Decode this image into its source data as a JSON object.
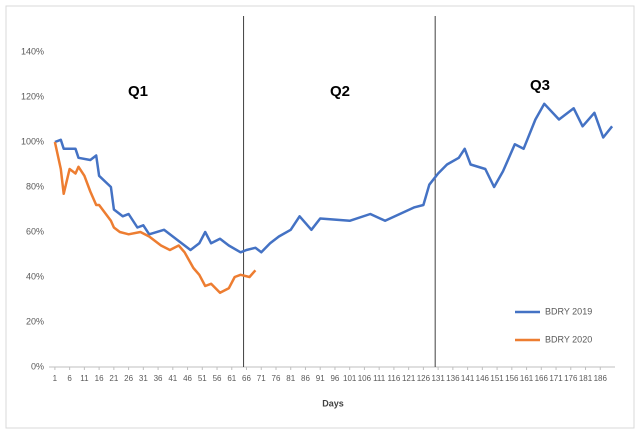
{
  "chart_data": {
    "type": "line",
    "x_label": "Days",
    "annotations": [
      "Q1",
      "Q2",
      "Q3"
    ],
    "dividers": [
      65,
      130
    ],
    "legend": "lower right",
    "xlim": [
      -1,
      191
    ],
    "xticks": [
      1,
      6,
      11,
      16,
      21,
      26,
      31,
      36,
      41,
      46,
      51,
      56,
      61,
      66,
      71,
      76,
      81,
      86,
      91,
      96,
      101,
      106,
      111,
      116,
      121,
      126,
      131,
      136,
      141,
      146,
      151,
      156,
      161,
      166,
      171,
      176,
      181,
      186
    ],
    "ylim": [
      0,
      140
    ],
    "yticks": [
      {
        "value": 0,
        "label": "0%"
      },
      {
        "value": 20,
        "label": "20%"
      },
      {
        "value": 40,
        "label": "40%"
      },
      {
        "value": 60,
        "label": "60%"
      },
      {
        "value": 80,
        "label": "80%"
      },
      {
        "value": 100,
        "label": "100%"
      },
      {
        "value": 120,
        "label": "120%"
      },
      {
        "value": 140,
        "label": "140%"
      }
    ],
    "series": [
      {
        "name": "BDRY 2019",
        "color": "#4472c4",
        "x": [
          1,
          3,
          4,
          8,
          9,
          13,
          15,
          16,
          20,
          21,
          24,
          26,
          29,
          31,
          33,
          38,
          43,
          47,
          50,
          52,
          54,
          57,
          60,
          64,
          66,
          69,
          71,
          74,
          77,
          81,
          84,
          88,
          91,
          101,
          108,
          113,
          118,
          123,
          126,
          128,
          131,
          134,
          138,
          140,
          142,
          147,
          150,
          153,
          157,
          160,
          164,
          167,
          172,
          177,
          180,
          184,
          187,
          190
        ],
        "values": [
          100,
          101,
          97,
          97,
          93,
          92,
          94,
          85,
          80,
          70,
          67,
          68,
          62,
          63,
          59,
          61,
          56,
          52,
          55,
          60,
          55,
          57,
          54,
          51,
          52,
          53,
          51,
          55,
          58,
          61,
          67,
          61,
          66,
          65,
          68,
          65,
          68,
          71,
          72,
          81,
          86,
          90,
          93,
          97,
          90,
          88,
          80,
          87,
          99,
          97,
          110,
          117,
          110,
          115,
          107,
          113,
          102,
          107
        ]
      },
      {
        "name": "BDRY 2020",
        "color": "#ed7d31",
        "x": [
          1,
          3,
          4,
          6,
          8,
          9,
          11,
          13,
          15,
          16,
          20,
          21,
          23,
          26,
          30,
          33,
          37,
          40,
          43,
          45,
          48,
          50,
          52,
          54,
          57,
          60,
          62,
          64,
          67,
          69
        ],
        "values": [
          100,
          88,
          77,
          88,
          86,
          89,
          85,
          78,
          72,
          72,
          65,
          62,
          60,
          59,
          60,
          58,
          54,
          52,
          54,
          51,
          44,
          41,
          36,
          37,
          33,
          35,
          40,
          41,
          40,
          43
        ]
      }
    ]
  }
}
